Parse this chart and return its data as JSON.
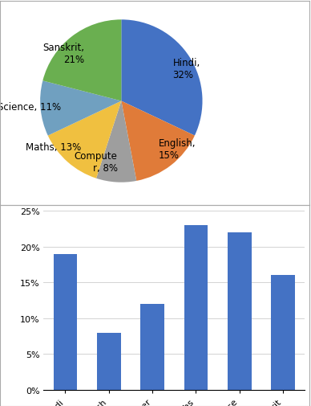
{
  "pie_labels": [
    "Hindi",
    "English",
    "Computer",
    "Maths",
    "Science",
    "Sanskrit"
  ],
  "pie_values": [
    32,
    15,
    8,
    13,
    11,
    21
  ],
  "pie_colors": [
    "#4472C4",
    "#E07B39",
    "#9E9E9E",
    "#F0C040",
    "#70A0C0",
    "#6AAF50"
  ],
  "pie_label_format": [
    "Hindi,\n32%",
    "English,\n15%",
    "Compute\nr, 8%",
    "Maths, 13%",
    "Science, 11%",
    "Sanskrit,\n21%"
  ],
  "bar_categories": [
    "Hindi",
    "English",
    "Computer",
    "Maths",
    "Science",
    "Sanskrit"
  ],
  "bar_values": [
    19,
    8,
    12,
    23,
    22,
    16
  ],
  "bar_color": "#4472C4",
  "bar_ylim": [
    0,
    25
  ],
  "bar_yticks": [
    0,
    5,
    10,
    15,
    20,
    25
  ],
  "bar_ytick_labels": [
    "0%",
    "5%",
    "10%",
    "15%",
    "20%",
    "25%"
  ],
  "bg_color": "#FFFFFF",
  "border_color": "#AAAAAA"
}
